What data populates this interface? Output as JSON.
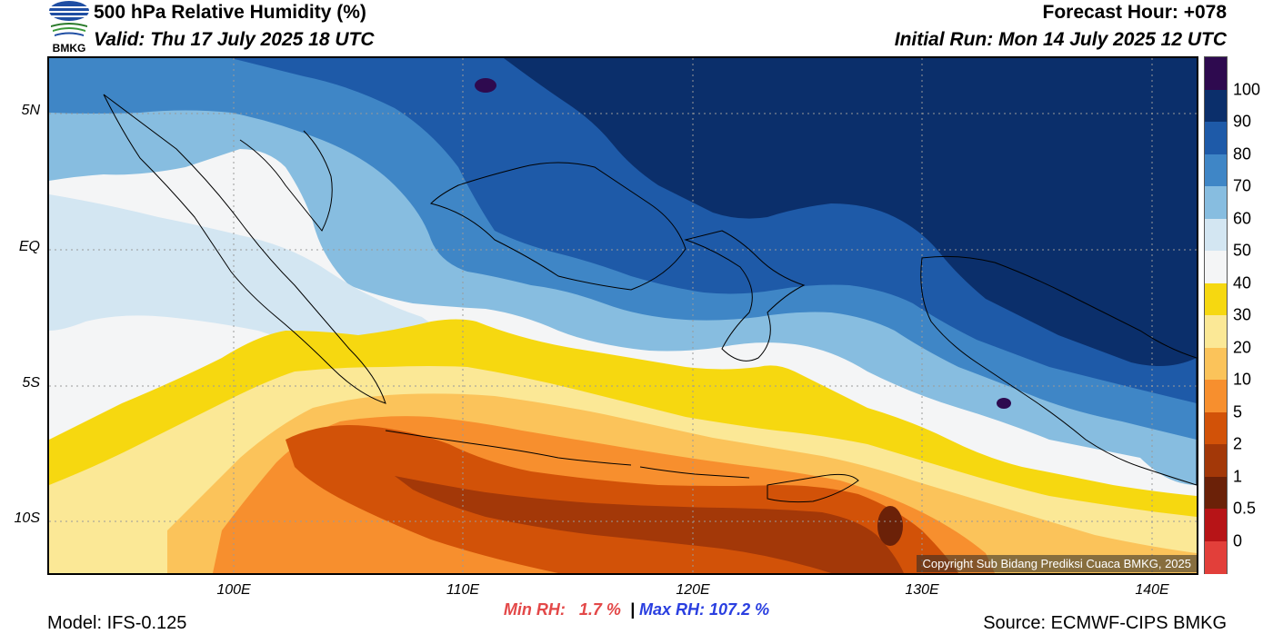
{
  "header": {
    "logo_text": "BMKG",
    "title": "500 hPa Relative Humidity (%)",
    "valid": "Valid: Thu 17 July 2025 18 UTC",
    "forecast_hour": "Forecast Hour: +078",
    "initial_run": "Initial Run: Mon 14 July 2025 12 UTC"
  },
  "map": {
    "lat_labels": [
      "5N",
      "EQ",
      "5S",
      "10S"
    ],
    "lon_labels": [
      "100E",
      "110E",
      "120E",
      "130E",
      "140E"
    ],
    "copyright": "Copyright Sub Bidang Prediksi Cuaca BMKG, 2025"
  },
  "colorbar": {
    "levels": [
      "100",
      "90",
      "80",
      "70",
      "60",
      "50",
      "40",
      "30",
      "20",
      "10",
      "5",
      "2",
      "1",
      "0.5",
      "0"
    ],
    "colors": [
      "#2e0a4f",
      "#0b2f6b",
      "#1e5aa8",
      "#3f86c6",
      "#87bde0",
      "#d3e6f2",
      "#f4f5f6",
      "#f6d810",
      "#fbe896",
      "#fbc35a",
      "#f78f2e",
      "#d25208",
      "#a33808",
      "#6b2108",
      "#b71417",
      "#e23f3a"
    ]
  },
  "footer": {
    "min_rh_label": "Min RH:",
    "min_rh_value": "1.7 %",
    "separator": "|",
    "max_rh_label": "Max RH:",
    "max_rh_value": "107.2 %",
    "model": "Model: IFS-0.125",
    "source": "Source: ECMWF-CIPS BMKG"
  }
}
